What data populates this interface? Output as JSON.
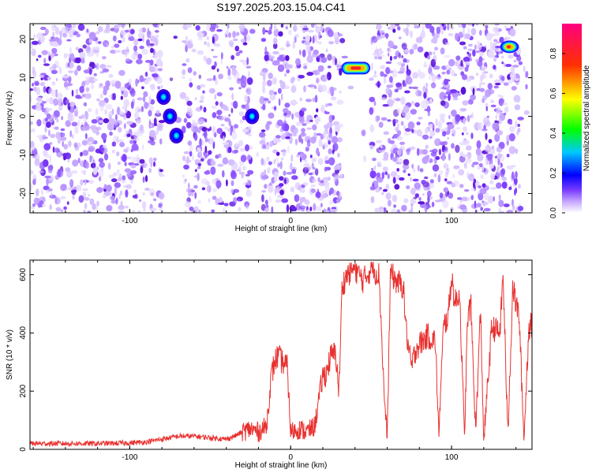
{
  "chart_data": [
    {
      "type": "heatmap",
      "title": "S197.2025.203.15.04.C41",
      "xlabel": "Height of straight line (km)",
      "ylabel": "Frequency (Hz)",
      "xlim": [
        -162,
        150
      ],
      "ylim": [
        -25,
        24
      ],
      "xticks": [
        -100,
        0,
        100
      ],
      "yticks": [
        -20,
        -10,
        0,
        10,
        20
      ],
      "grid": false,
      "colorbar": {
        "label": "Normalized spectral amplitude",
        "range": [
          0,
          0.95
        ],
        "ticks": [
          0.0,
          0.2,
          0.4,
          0.6,
          0.8
        ]
      },
      "gaps_km": [
        [
          -80,
          -67
        ],
        [
          -25,
          -18
        ],
        [
          32,
          50
        ],
        [
          143,
          150
        ]
      ],
      "features": [
        {
          "x": -79,
          "y": 5,
          "amp": 0.25
        },
        {
          "x": -75,
          "y": 0,
          "amp": 0.25
        },
        {
          "x": -71,
          "y": -5,
          "amp": 0.25
        },
        {
          "x": -24,
          "y": 0,
          "amp": 0.3
        },
        {
          "x": 33,
          "y": 12.5,
          "x_end": 48,
          "amp": 0.95
        },
        {
          "x": 136,
          "y": 18,
          "amp": 0.85
        }
      ]
    },
    {
      "type": "line",
      "xlabel": "Height of straight line (km)",
      "ylabel": "SNR (10 * v/v)",
      "xlim": [
        -162,
        150
      ],
      "ylim": [
        0,
        650
      ],
      "xticks": [
        -100,
        0,
        100
      ],
      "yticks": [
        0,
        200,
        400,
        600
      ],
      "grid": false,
      "color": "#e8312f",
      "series": [
        {
          "x": [
            -162,
            -140,
            -120,
            -100,
            -90,
            -80,
            -70,
            -60,
            -50,
            -40,
            -35,
            -30,
            -25,
            -20,
            -15,
            -12,
            -10,
            -8,
            -5,
            -2,
            0,
            5,
            10,
            15,
            18,
            20,
            22,
            25,
            28,
            30,
            32,
            35,
            40,
            45,
            50,
            55,
            58,
            60,
            62,
            65,
            70,
            72,
            75,
            78,
            80,
            85,
            90,
            92,
            95,
            98,
            100,
            102,
            105,
            108,
            110,
            112,
            115,
            118,
            120,
            125,
            130,
            132,
            135,
            138,
            140,
            142,
            145,
            148,
            150
          ],
          "values": [
            20,
            20,
            20,
            22,
            25,
            35,
            45,
            45,
            40,
            35,
            45,
            60,
            70,
            60,
            80,
            250,
            300,
            320,
            300,
            280,
            60,
            70,
            60,
            80,
            190,
            250,
            260,
            320,
            330,
            200,
            560,
            600,
            620,
            580,
            620,
            600,
            200,
            30,
            610,
            580,
            560,
            400,
            280,
            350,
            360,
            390,
            370,
            50,
            420,
            460,
            600,
            500,
            540,
            45,
            450,
            500,
            60,
            480,
            30,
            420,
            400,
            600,
            45,
            560,
            500,
            460,
            30,
            420,
            430
          ]
        }
      ]
    }
  ]
}
